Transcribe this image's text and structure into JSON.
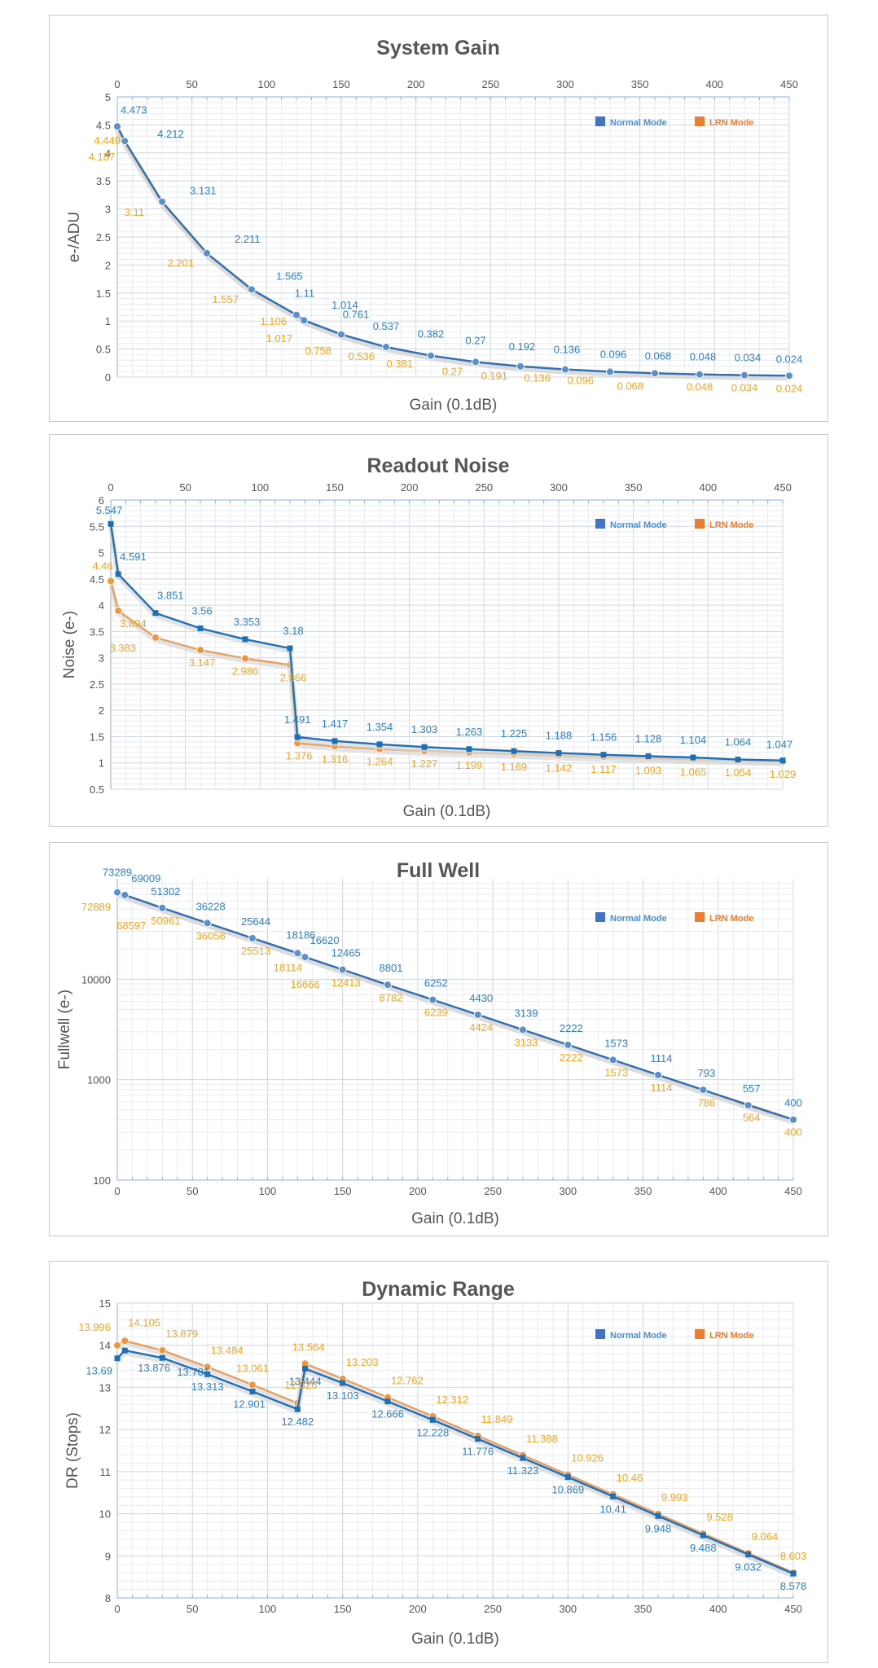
{
  "chart_data": [
    {
      "type": "line",
      "title": "System Gain",
      "xlabel": "Gain (0.1dB)",
      "ylabel": "e-/ADU",
      "xlim": [
        0,
        450
      ],
      "ylim": [
        0,
        5
      ],
      "x_ticks": [
        "0",
        "50",
        "100",
        "150",
        "200",
        "250",
        "300",
        "350",
        "400",
        "450"
      ],
      "y_ticks": [
        "0",
        "0.5",
        "1",
        "1.5",
        "2",
        "2.5",
        "3",
        "3.5",
        "4",
        "4.5",
        "5"
      ],
      "x_axis_position": "top",
      "y_scale": "linear",
      "legend": "top-right",
      "grid": true,
      "marker": "circle",
      "x": [
        0,
        5,
        30,
        60,
        90,
        120,
        125,
        150,
        180,
        210,
        240,
        270,
        300,
        330,
        360,
        390,
        420,
        450
      ],
      "series": [
        {
          "name": "Normal Mode",
          "color": "#2f6fb5",
          "label_color": "#2f7fc8",
          "values": [
            4.473,
            4.212,
            3.131,
            2.211,
            1.565,
            1.11,
            1.014,
            0.761,
            0.537,
            0.382,
            0.27,
            0.192,
            0.136,
            0.096,
            0.068,
            0.048,
            0.034,
            0.024
          ],
          "labels": [
            "4.473",
            "4.212",
            "3.131",
            "2.211",
            "1.565",
            "1.11",
            "1.014",
            "0.761",
            "0.537",
            "0.382",
            "0.27",
            "0.192",
            "0.136",
            "0.096",
            "0.068",
            "0.048",
            "0.034",
            "0.024"
          ]
        },
        {
          "name": "LRN Mode",
          "color": "#ed7d31",
          "label_color": "#f5a623",
          "values": [
            4.449,
            4.187,
            3.11,
            2.201,
            1.557,
            1.106,
            1.017,
            0.758,
            0.536,
            0.381,
            0.27,
            0.191,
            0.136,
            0.096,
            0.068,
            0.048,
            0.034,
            0.024
          ],
          "labels": [
            "4.449",
            "4.187",
            "3.11",
            "2.201",
            "1.557",
            "1.106",
            "1.017",
            "0.758",
            "0.536",
            "0.381",
            "0.27",
            "0.191",
            "0.136",
            "0.096",
            "0.068",
            "0.048",
            "0.034",
            "0.024"
          ]
        }
      ]
    },
    {
      "type": "line",
      "title": "Readout Noise",
      "xlabel": "Gain (0.1dB)",
      "ylabel": "Noise (e-)",
      "xlim": [
        0,
        450
      ],
      "ylim": [
        0.5,
        6
      ],
      "x_ticks": [
        "0",
        "50",
        "100",
        "150",
        "200",
        "250",
        "300",
        "350",
        "400",
        "450"
      ],
      "y_ticks": [
        "0.5",
        "1",
        "1.5",
        "2",
        "2.5",
        "3",
        "3.5",
        "4",
        "4.5",
        "5",
        "5.5",
        "6"
      ],
      "x_axis_position": "top",
      "y_scale": "linear",
      "legend": "top-right",
      "grid": true,
      "series": [
        {
          "name": "Normal Mode",
          "color": "#1f6fb5",
          "label_color": "#2f7fc8",
          "marker": "square",
          "x": [
            0,
            5,
            30,
            60,
            90,
            120,
            125,
            150,
            180,
            210,
            240,
            270,
            300,
            330,
            360,
            390,
            420,
            450
          ],
          "values": [
            5.547,
            4.591,
            3.851,
            3.56,
            3.353,
            3.18,
            1.491,
            1.417,
            1.354,
            1.303,
            1.263,
            1.225,
            1.188,
            1.156,
            1.128,
            1.104,
            1.064,
            1.047
          ],
          "labels": [
            "5.547",
            "4.591",
            "3.851",
            "3.56",
            "3.353",
            "3.18",
            "1.491",
            "1.417",
            "1.354",
            "1.303",
            "1.263",
            "1.225",
            "1.188",
            "1.156",
            "1.128",
            "1.104",
            "1.064",
            "1.047"
          ]
        },
        {
          "name": "LRN Mode",
          "color": "#e8a060",
          "label_color": "#f5a623",
          "marker": "circle",
          "x": [
            0,
            5,
            30,
            60,
            90,
            120,
            125,
            150,
            180,
            210,
            240,
            270,
            300,
            330,
            360,
            390,
            420,
            450
          ],
          "values": [
            4.46,
            3.894,
            3.383,
            3.147,
            2.986,
            2.866,
            1.376,
            1.316,
            1.264,
            1.227,
            1.199,
            1.169,
            1.142,
            1.117,
            1.093,
            1.065,
            1.054,
            1.029
          ],
          "labels": [
            "4.46",
            "3.894",
            "3.383",
            "3.147",
            "2.986",
            "2.866",
            "1.376",
            "1.316",
            "1.264",
            "1.227",
            "1.199",
            "1.169",
            "1.142",
            "1.117",
            "1.093",
            "1.065",
            "1.054",
            "1.029"
          ]
        }
      ]
    },
    {
      "type": "line",
      "title": "Full Well",
      "xlabel": "Gain (0.1dB)",
      "ylabel": "Fullwell (e-)",
      "xlim": [
        0,
        450
      ],
      "ylim": [
        100,
        100000
      ],
      "x_ticks": [
        "0",
        "50",
        "100",
        "150",
        "200",
        "250",
        "300",
        "350",
        "400",
        "450"
      ],
      "y_tick_values": [
        100,
        1000,
        10000
      ],
      "y_ticks": [
        "100",
        "1000",
        "10000"
      ],
      "x_axis_position": "bottom",
      "y_scale": "log",
      "legend": "top-right",
      "grid": true,
      "marker": "circle",
      "x": [
        0,
        5,
        30,
        60,
        90,
        120,
        125,
        150,
        180,
        210,
        240,
        270,
        300,
        330,
        360,
        390,
        420,
        450
      ],
      "series": [
        {
          "name": "Normal Mode",
          "color": "#2f6fb5",
          "label_color": "#2f7fc8",
          "values": [
            73289,
            69009,
            51302,
            36228,
            25644,
            18186,
            16620,
            12465,
            8801,
            6252,
            4430,
            3139,
            2222,
            1573,
            1114,
            793,
            557,
            400
          ],
          "labels": [
            "73289",
            "69009",
            "51302",
            "36228",
            "25644",
            "18186",
            "16620",
            "12465",
            "8801",
            "6252",
            "4430",
            "3139",
            "2222",
            "1573",
            "1114",
            "793",
            "557",
            "400"
          ]
        },
        {
          "name": "LRN Mode",
          "color": "#ed7d31",
          "label_color": "#f5a623",
          "values": [
            72889,
            68597,
            50961,
            36058,
            25513,
            18114,
            16666,
            12413,
            8782,
            6239,
            4424,
            3133,
            2222,
            1573,
            1114,
            786,
            564,
            400
          ],
          "labels": [
            "72889",
            "68597",
            "50961",
            "36058",
            "25513",
            "18114",
            "16666",
            "12413",
            "8782",
            "6239",
            "4424",
            "3133",
            "2222",
            "1573",
            "1114",
            "786",
            "564",
            "400"
          ]
        }
      ]
    },
    {
      "type": "line",
      "title": "Dynamic Range",
      "xlabel": "Gain (0.1dB)",
      "ylabel": "DR (Stops)",
      "xlim": [
        0,
        450
      ],
      "ylim": [
        8,
        15
      ],
      "x_ticks": [
        "0",
        "50",
        "100",
        "150",
        "200",
        "250",
        "300",
        "350",
        "400",
        "450"
      ],
      "y_ticks": [
        "8",
        "9",
        "10",
        "11",
        "12",
        "13",
        "14",
        "15"
      ],
      "x_axis_position": "bottom",
      "y_scale": "linear",
      "legend": "top-right",
      "grid": true,
      "series": [
        {
          "name": "Normal Mode",
          "color": "#1f6fb5",
          "label_color": "#2f7fc8",
          "marker": "square",
          "x": [
            0,
            5,
            30,
            60,
            90,
            120,
            125,
            150,
            180,
            210,
            240,
            270,
            300,
            330,
            360,
            390,
            420,
            450
          ],
          "values": [
            13.69,
            13.876,
            13.701,
            13.313,
            12.901,
            12.482,
            13.444,
            13.103,
            12.666,
            12.228,
            11.776,
            11.323,
            10.869,
            10.41,
            9.948,
            9.488,
            9.032,
            8.578
          ],
          "labels": [
            "13.69",
            "13.876",
            "13.701",
            "13.313",
            "12.901",
            "12.482",
            "13.444",
            "13.103",
            "12.666",
            "12.228",
            "11.776",
            "11.323",
            "10.869",
            "10.41",
            "9.948",
            "9.488",
            "9.032",
            "8.578"
          ]
        },
        {
          "name": "LRN Mode",
          "color": "#e8a060",
          "label_color": "#f5a623",
          "marker": "circle",
          "x": [
            0,
            5,
            30,
            60,
            90,
            120,
            125,
            150,
            180,
            210,
            240,
            270,
            300,
            330,
            360,
            390,
            420,
            450
          ],
          "values": [
            13.996,
            14.105,
            13.879,
            13.484,
            13.061,
            12.626,
            13.564,
            13.203,
            12.762,
            12.312,
            11.849,
            11.388,
            10.926,
            10.46,
            9.993,
            9.528,
            9.064,
            8.603
          ],
          "labels": [
            "13.996",
            "14.105",
            "13.879",
            "13.484",
            "13.061",
            "12.626",
            "13.564",
            "13.203",
            "12.762",
            "12.312",
            "11.849",
            "11.388",
            "10.926",
            "10.46",
            "9.993",
            "9.528",
            "9.064",
            "8.603"
          ]
        }
      ]
    }
  ]
}
